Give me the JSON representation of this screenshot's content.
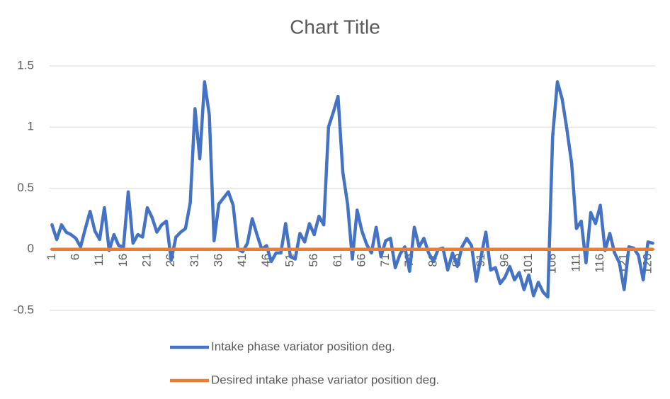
{
  "chart_data": {
    "type": "line",
    "title": "Chart Title",
    "categories": [
      1,
      null,
      null,
      null,
      null,
      6,
      null,
      null,
      null,
      null,
      11,
      null,
      null,
      null,
      null,
      16,
      null,
      null,
      null,
      null,
      21,
      null,
      null,
      null,
      null,
      26,
      null,
      null,
      null,
      null,
      31,
      null,
      null,
      null,
      null,
      36,
      null,
      null,
      null,
      null,
      41,
      null,
      null,
      null,
      null,
      46,
      null,
      null,
      null,
      null,
      51,
      null,
      null,
      null,
      null,
      56,
      null,
      null,
      null,
      null,
      61,
      null,
      null,
      null,
      null,
      66,
      null,
      null,
      null,
      null,
      71,
      null,
      null,
      null,
      null,
      76,
      null,
      null,
      null,
      null,
      81,
      null,
      null,
      null,
      null,
      86,
      null,
      null,
      null,
      null,
      91,
      null,
      null,
      null,
      null,
      96,
      null,
      null,
      null,
      null,
      101,
      null,
      null,
      null,
      null,
      106,
      null,
      null,
      null,
      null,
      111,
      null,
      null,
      null,
      null,
      116,
      null,
      null,
      null,
      null,
      121,
      null,
      null,
      null,
      null,
      126,
      null
    ],
    "series": [
      {
        "name": "Intake phase variator position deg.",
        "color": "#4472c4",
        "values": [
          0.2,
          0.08,
          0.2,
          0.14,
          0.12,
          0.09,
          0.02,
          0.17,
          0.31,
          0.15,
          0.08,
          0.34,
          -0.01,
          0.12,
          0.03,
          0.02,
          0.47,
          0.05,
          0.12,
          0.1,
          0.34,
          0.26,
          0.14,
          0.2,
          0.23,
          -0.09,
          0.1,
          0.14,
          0.17,
          0.38,
          1.15,
          0.74,
          1.37,
          1.1,
          0.07,
          0.37,
          0.42,
          0.47,
          0.36,
          0.0,
          -0.02,
          0.05,
          0.25,
          0.12,
          0.0,
          0.03,
          -0.1,
          -0.03,
          -0.03,
          0.21,
          -0.06,
          -0.08,
          0.13,
          0.06,
          0.21,
          0.12,
          0.27,
          0.2,
          1.0,
          1.12,
          1.25,
          0.63,
          0.37,
          -0.08,
          0.32,
          0.15,
          0.04,
          -0.03,
          0.18,
          -0.06,
          0.07,
          0.09,
          -0.15,
          -0.04,
          0.02,
          -0.18,
          0.18,
          0.02,
          0.09,
          -0.03,
          -0.1,
          0.0,
          0.01,
          -0.17,
          -0.03,
          -0.14,
          0.02,
          0.09,
          0.03,
          -0.26,
          -0.06,
          0.14,
          -0.17,
          -0.15,
          -0.28,
          -0.23,
          -0.14,
          -0.25,
          -0.19,
          -0.33,
          -0.21,
          -0.38,
          -0.27,
          -0.35,
          -0.39,
          0.92,
          1.37,
          1.23,
          0.98,
          0.7,
          0.17,
          0.23,
          -0.11,
          0.3,
          0.21,
          0.36,
          -0.01,
          0.13,
          -0.03,
          -0.11,
          -0.33,
          0.02,
          0.01,
          -0.05,
          -0.25,
          0.06,
          0.05
        ]
      },
      {
        "name": "Desired intake phase variator position deg.",
        "color": "#ed7d31",
        "values": [
          0,
          0,
          0,
          0,
          0,
          0,
          0,
          0,
          0,
          0,
          0,
          0,
          0,
          0,
          0,
          0,
          0,
          0,
          0,
          0,
          0,
          0,
          0,
          0,
          0,
          0,
          0,
          0,
          0,
          0,
          0,
          0,
          0,
          0,
          0,
          0,
          0,
          0,
          0,
          0,
          0,
          0,
          0,
          0,
          0,
          0,
          0,
          0,
          0,
          0,
          0,
          0,
          0,
          0,
          0,
          0,
          0,
          0,
          0,
          0,
          0,
          0,
          0,
          0,
          0,
          0,
          0,
          0,
          0,
          0,
          0,
          0,
          0,
          0,
          0,
          0,
          0,
          0,
          0,
          0,
          0,
          0,
          0,
          0,
          0,
          0,
          0,
          0,
          0,
          0,
          0,
          0,
          0,
          0,
          0,
          0,
          0,
          0,
          0,
          0,
          0,
          0,
          0,
          0,
          0,
          0,
          0,
          0,
          0,
          0,
          0,
          0,
          0,
          0,
          0,
          0,
          0,
          0,
          0,
          0,
          0,
          0,
          0,
          0,
          0,
          0,
          0
        ]
      }
    ],
    "ylim": [
      -0.5,
      1.5
    ],
    "yticks": [
      -0.5,
      0,
      0.5,
      1,
      1.5
    ],
    "grid": true,
    "legend": "bottom"
  }
}
